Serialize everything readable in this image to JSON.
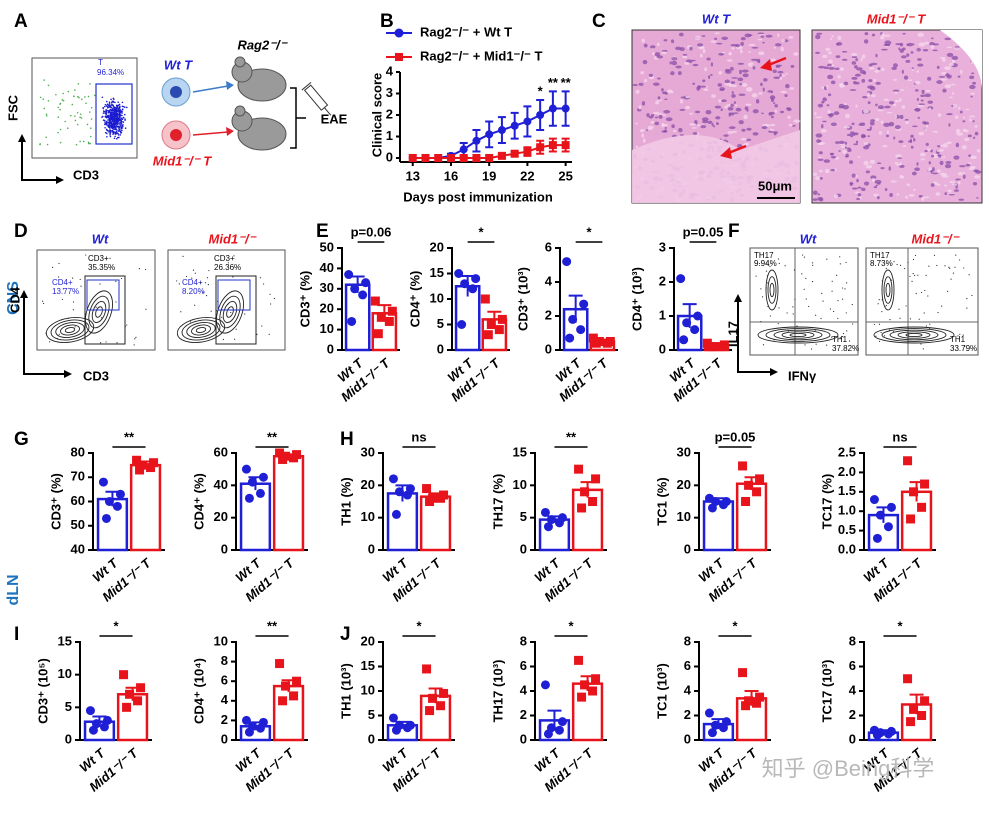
{
  "chart_data": [
    {
      "type": "line",
      "x_label": "Days post immunization",
      "y_label": "Clinical score",
      "x": [
        13,
        14,
        15,
        16,
        17,
        18,
        19,
        20,
        21,
        22,
        23,
        24,
        25
      ],
      "xlim": [
        12,
        25.5
      ],
      "xticks": [
        13,
        16,
        19,
        22,
        25
      ],
      "ylim": [
        0,
        4
      ],
      "yticks": [
        0,
        1,
        2,
        3,
        4
      ],
      "series": [
        {
          "name": "Rag2⁻/⁻ + Wt T",
          "color": "#1f1fd6",
          "marker": "circle",
          "values": [
            0,
            0,
            0,
            0.1,
            0.4,
            0.8,
            1.1,
            1.3,
            1.5,
            1.7,
            2.0,
            2.3,
            2.3
          ],
          "errors": [
            0,
            0,
            0,
            0.1,
            0.3,
            0.5,
            0.6,
            0.6,
            0.6,
            0.7,
            0.7,
            0.8,
            0.8
          ]
        },
        {
          "name": "Rag2⁻/⁻ + Mid1⁻/⁻ T",
          "color": "#e8141c",
          "marker": "square",
          "values": [
            0,
            0,
            0,
            0,
            0,
            0,
            0,
            0.1,
            0.2,
            0.3,
            0.5,
            0.6,
            0.6
          ],
          "errors": [
            0,
            0,
            0,
            0,
            0,
            0,
            0,
            0.1,
            0.1,
            0.2,
            0.3,
            0.3,
            0.3
          ]
        }
      ],
      "annotations": [
        {
          "x": 23,
          "text": "*"
        },
        {
          "x": 24,
          "text": "**"
        },
        {
          "x": 25,
          "text": "**"
        }
      ]
    },
    {
      "type": "bar",
      "y_label": "CD3⁺ (%)",
      "categories": [
        "Wt T",
        "Mid1⁻/⁻ T"
      ],
      "colors": [
        "#1f1fd6",
        "#e8141c"
      ],
      "values": [
        32,
        18
      ],
      "errors": [
        4,
        4
      ],
      "points": [
        [
          37,
          33,
          30,
          27,
          14
        ],
        [
          24,
          19,
          16,
          14,
          8
        ]
      ],
      "ylim": [
        0,
        50
      ],
      "yticks": [
        0,
        10,
        20,
        30,
        40,
        50
      ],
      "significance": "p=0.06"
    },
    {
      "type": "bar",
      "y_label": "CD4⁺ (%)",
      "categories": [
        "Wt T",
        "Mid1⁻/⁻ T"
      ],
      "colors": [
        "#1f1fd6",
        "#e8141c"
      ],
      "values": [
        12.5,
        6
      ],
      "errors": [
        2,
        1.5
      ],
      "points": [
        [
          15,
          14,
          13,
          12,
          5
        ],
        [
          10,
          6,
          5,
          4,
          3
        ]
      ],
      "ylim": [
        0,
        20
      ],
      "yticks": [
        0,
        5,
        10,
        15,
        20
      ],
      "significance": "*"
    },
    {
      "type": "bar",
      "y_label": "CD3⁺ (10³)",
      "categories": [
        "Wt T",
        "Mid1⁻/⁻ T"
      ],
      "colors": [
        "#1f1fd6",
        "#e8141c"
      ],
      "values": [
        2.4,
        0.5
      ],
      "errors": [
        0.8,
        0.1
      ],
      "points": [
        [
          5.2,
          2.7,
          1.8,
          1.2,
          0.7
        ],
        [
          0.7,
          0.5,
          0.5,
          0.4,
          0.4
        ]
      ],
      "ylim": [
        0,
        6
      ],
      "yticks": [
        0,
        2,
        4,
        6
      ],
      "significance": "*"
    },
    {
      "type": "bar",
      "y_label": "CD4⁺ (10³)",
      "categories": [
        "Wt T",
        "Mid1⁻/⁻ T"
      ],
      "colors": [
        "#1f1fd6",
        "#e8141c"
      ],
      "values": [
        1.0,
        0.15
      ],
      "errors": [
        0.35,
        0.05
      ],
      "points": [
        [
          2.1,
          1.0,
          0.8,
          0.6,
          0.3
        ],
        [
          0.2,
          0.15,
          0.1,
          0.1,
          0.1
        ]
      ],
      "ylim": [
        0,
        3
      ],
      "yticks": [
        0,
        1,
        2,
        3
      ],
      "significance": "p=0.05"
    },
    {
      "type": "bar",
      "y_label": "CD3⁺ (%)",
      "categories": [
        "Wt T",
        "Mid1⁻/⁻ T"
      ],
      "colors": [
        "#1f1fd6",
        "#e8141c"
      ],
      "values": [
        61,
        75
      ],
      "errors": [
        3,
        1.5
      ],
      "points": [
        [
          68,
          63,
          60,
          58,
          53
        ],
        [
          77,
          76,
          75,
          74,
          73
        ]
      ],
      "ylim": [
        40,
        80
      ],
      "yticks": [
        40,
        50,
        60,
        70,
        80
      ],
      "significance": "**"
    },
    {
      "type": "bar",
      "y_label": "CD4⁺ (%)",
      "categories": [
        "Wt T",
        "Mid1⁻/⁻ T"
      ],
      "colors": [
        "#1f1fd6",
        "#e8141c"
      ],
      "values": [
        41,
        58
      ],
      "errors": [
        4,
        1
      ],
      "points": [
        [
          50,
          45,
          42,
          35,
          32
        ],
        [
          60,
          59,
          58,
          57,
          56
        ]
      ],
      "ylim": [
        0,
        60
      ],
      "yticks": [
        0,
        20,
        40,
        60
      ],
      "significance": "**"
    },
    {
      "type": "bar",
      "y_label": "TH1 (%)",
      "categories": [
        "Wt T",
        "Mid1⁻/⁻ T"
      ],
      "colors": [
        "#1f1fd6",
        "#e8141c"
      ],
      "values": [
        17.5,
        16.5
      ],
      "errors": [
        2.5,
        1
      ],
      "points": [
        [
          22,
          19,
          18,
          17,
          11
        ],
        [
          19,
          17,
          16,
          16,
          15
        ]
      ],
      "ylim": [
        0,
        30
      ],
      "yticks": [
        0,
        10,
        20,
        30
      ],
      "significance": "ns"
    },
    {
      "type": "bar",
      "y_label": "TH17 (%)",
      "categories": [
        "Wt T",
        "Mid1⁻/⁻ T"
      ],
      "colors": [
        "#1f1fd6",
        "#e8141c"
      ],
      "values": [
        4.7,
        9.3
      ],
      "errors": [
        0.5,
        1.2
      ],
      "points": [
        [
          5.8,
          5,
          4.7,
          4.2,
          3.6
        ],
        [
          12.5,
          11,
          9,
          7.5,
          6.5
        ]
      ],
      "ylim": [
        0,
        15
      ],
      "yticks": [
        0,
        5,
        10,
        15
      ],
      "significance": "**"
    },
    {
      "type": "bar",
      "y_label": "TC1 (%)",
      "categories": [
        "Wt T",
        "Mid1⁻/⁻ T"
      ],
      "colors": [
        "#1f1fd6",
        "#e8141c"
      ],
      "values": [
        15,
        20.5
      ],
      "errors": [
        1,
        2
      ],
      "points": [
        [
          16,
          15,
          15,
          14,
          13
        ],
        [
          26,
          22,
          20,
          18,
          15
        ]
      ],
      "ylim": [
        0,
        30
      ],
      "yticks": [
        0,
        10,
        20,
        30
      ],
      "significance": "p=0.05"
    },
    {
      "type": "bar",
      "y_label": "TC17 (%)",
      "categories": [
        "Wt T",
        "Mid1⁻/⁻ T"
      ],
      "colors": [
        "#1f1fd6",
        "#e8141c"
      ],
      "values": [
        0.9,
        1.5
      ],
      "errors": [
        0.2,
        0.25
      ],
      "points": [
        [
          1.3,
          1.1,
          0.9,
          0.6,
          0.3
        ],
        [
          2.3,
          1.7,
          1.5,
          1.1,
          0.8
        ]
      ],
      "ylim": [
        0,
        2.5
      ],
      "yticks": [
        {
          "value": 0,
          "label": "0.0"
        },
        0.5,
        {
          "value": 1,
          "label": "1.0"
        },
        1.5,
        {
          "value": 2,
          "label": "2.0"
        },
        2.5
      ],
      "significance": "ns"
    },
    {
      "type": "bar",
      "y_label": "CD3⁺ (10⁵)",
      "categories": [
        "Wt T",
        "Mid1⁻/⁻ T"
      ],
      "colors": [
        "#1f1fd6",
        "#e8141c"
      ],
      "values": [
        2.8,
        7
      ],
      "errors": [
        0.8,
        1
      ],
      "points": [
        [
          4.5,
          3,
          2.5,
          2,
          1.5
        ],
        [
          10,
          8,
          7,
          6,
          5
        ]
      ],
      "ylim": [
        0,
        15
      ],
      "yticks": [
        0,
        5,
        10,
        15
      ],
      "significance": "*"
    },
    {
      "type": "bar",
      "y_label": "CD4⁺ (10⁴)",
      "categories": [
        "Wt T",
        "Mid1⁻/⁻ T"
      ],
      "colors": [
        "#1f1fd6",
        "#e8141c"
      ],
      "values": [
        1.4,
        5.5
      ],
      "errors": [
        0.4,
        0.6
      ],
      "points": [
        [
          2,
          1.8,
          1.4,
          1.2,
          0.8
        ],
        [
          7.8,
          6,
          5.5,
          4.5,
          4
        ]
      ],
      "ylim": [
        0,
        10
      ],
      "yticks": [
        0,
        2,
        4,
        6,
        8,
        10
      ],
      "significance": "**"
    },
    {
      "type": "bar",
      "y_label": "TH1 (10³)",
      "categories": [
        "Wt T",
        "Mid1⁻/⁻ T"
      ],
      "colors": [
        "#1f1fd6",
        "#e8141c"
      ],
      "values": [
        3,
        9
      ],
      "errors": [
        0.7,
        1.5
      ],
      "points": [
        [
          4.5,
          3,
          3,
          2.5,
          2
        ],
        [
          14.5,
          9.5,
          8.5,
          7,
          6
        ]
      ],
      "ylim": [
        0,
        20
      ],
      "yticks": [
        0,
        5,
        10,
        15,
        20
      ],
      "significance": "*"
    },
    {
      "type": "bar",
      "y_label": "TH17 (10³)",
      "categories": [
        "Wt T",
        "Mid1⁻/⁻ T"
      ],
      "colors": [
        "#1f1fd6",
        "#e8141c"
      ],
      "values": [
        1.6,
        4.6
      ],
      "errors": [
        0.8,
        0.6
      ],
      "points": [
        [
          4.5,
          1.5,
          1,
          0.8,
          0.5
        ],
        [
          6.5,
          5,
          4.5,
          4,
          3.5
        ]
      ],
      "ylim": [
        0,
        8
      ],
      "yticks": [
        0,
        2,
        4,
        6,
        8
      ],
      "significance": "*"
    },
    {
      "type": "bar",
      "y_label": "TC1 (10³)",
      "categories": [
        "Wt T",
        "Mid1⁻/⁻ T"
      ],
      "colors": [
        "#1f1fd6",
        "#e8141c"
      ],
      "values": [
        1.3,
        3.4
      ],
      "errors": [
        0.4,
        0.6
      ],
      "points": [
        [
          2.2,
          1.5,
          1.2,
          1,
          0.6
        ],
        [
          5.5,
          3.5,
          3.2,
          3,
          2.8
        ]
      ],
      "ylim": [
        0,
        8
      ],
      "yticks": [
        0,
        2,
        4,
        6,
        8
      ],
      "significance": "*"
    },
    {
      "type": "bar",
      "y_label": "TC17 (10³)",
      "categories": [
        "Wt T",
        "Mid1⁻/⁻ T"
      ],
      "colors": [
        "#1f1fd6",
        "#e8141c"
      ],
      "values": [
        0.6,
        2.9
      ],
      "errors": [
        0.2,
        0.8
      ],
      "points": [
        [
          0.8,
          0.7,
          0.6,
          0.5,
          0.4
        ],
        [
          5,
          3.2,
          2.5,
          2,
          1.5
        ]
      ],
      "ylim": [
        0,
        8
      ],
      "yticks": [
        0,
        2,
        4,
        6,
        8
      ],
      "significance": "*"
    }
  ],
  "panels": {
    "labels": [
      "A",
      "B",
      "C",
      "D",
      "E",
      "F",
      "G",
      "H",
      "I",
      "J"
    ],
    "tissues": [
      "CNS",
      "dLN"
    ],
    "a": {
      "y_axis": "FSC",
      "x_axis": "CD3",
      "gate": "T",
      "gate_percent": "96.34%",
      "donor_wt": "Wt T",
      "donor_ko": "Mid1⁻/⁻ T",
      "recipient": "Rag2⁻/⁻",
      "outcome": "EAE"
    },
    "c": {
      "titles": [
        "Wt T",
        "Mid1⁻/⁻ T"
      ],
      "scale_bar": "50μm"
    },
    "d": {
      "titles": [
        "Wt",
        "Mid1⁻/⁻"
      ],
      "y_axis": "CD4",
      "x_axis": "CD3",
      "gates": [
        [
          {
            "name": "CD3+",
            "percent": "35.35%"
          },
          {
            "name": "CD4+",
            "percent": "13.77%"
          }
        ],
        [
          {
            "name": "CD3+",
            "percent": "26.36%"
          },
          {
            "name": "CD4+",
            "percent": "8.20%"
          }
        ]
      ]
    },
    "f": {
      "titles": [
        "Wt",
        "Mid1⁻/⁻"
      ],
      "y_axis": "IL17",
      "x_axis": "IFNγ",
      "gates": [
        [
          {
            "name": "TH17",
            "percent": "9.94%"
          },
          {
            "name": "TH1",
            "percent": "37.82%"
          }
        ],
        [
          {
            "name": "TH17",
            "percent": "8.73%"
          },
          {
            "name": "TH1",
            "percent": "33.79%"
          }
        ]
      ]
    }
  },
  "watermark": "知乎 @Being科学"
}
